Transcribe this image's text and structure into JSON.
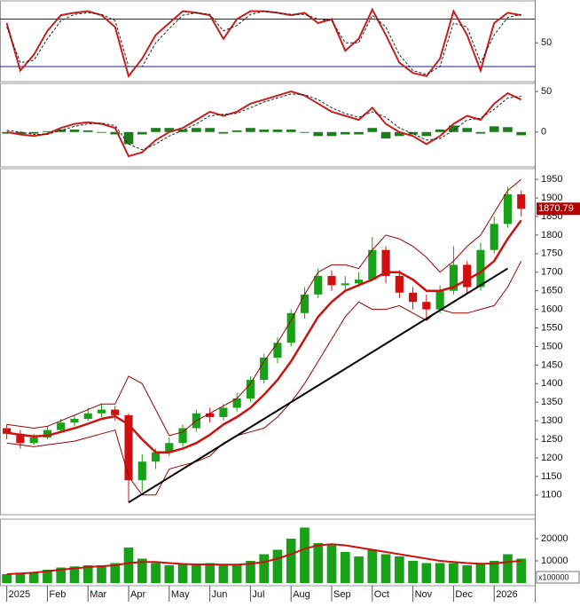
{
  "chart_data": [
    {
      "type": "line",
      "xlim": [
        -0.5,
        39
      ],
      "ylim": [
        1,
        103
      ],
      "yticks": [
        50
      ],
      "hlines": [
        80,
        20
      ],
      "hline_color": "#1c1c9c",
      "series": [
        {
          "color": "#c81e1e",
          "width": 2,
          "values": [
            75,
            15,
            35,
            65,
            85,
            88,
            90,
            85,
            70,
            8,
            30,
            60,
            75,
            90,
            88,
            85,
            55,
            80,
            90,
            90,
            88,
            85,
            88,
            75,
            80,
            40,
            55,
            92,
            60,
            25,
            12,
            8,
            30,
            90,
            60,
            15,
            75,
            88,
            85
          ]
        },
        {
          "color": "#222222",
          "width": 1,
          "dash": true,
          "values": [
            70,
            25,
            28,
            55,
            78,
            86,
            88,
            86,
            78,
            20,
            20,
            50,
            68,
            85,
            88,
            86,
            65,
            72,
            86,
            90,
            88,
            86,
            86,
            80,
            78,
            50,
            50,
            85,
            70,
            35,
            15,
            10,
            20,
            75,
            70,
            25,
            60,
            82,
            86
          ]
        }
      ]
    },
    {
      "type": "line",
      "xlim": [
        -0.5,
        39
      ],
      "ylim": [
        -43,
        60
      ],
      "yticks": [
        50,
        0
      ],
      "series": [
        {
          "type": "bar",
          "color": "#1e7b1e",
          "values": [
            -2,
            -3,
            -2,
            1,
            3,
            3,
            2,
            -1,
            -3,
            -15,
            -3,
            5,
            5,
            3,
            5,
            5,
            -2,
            2,
            5,
            3,
            3,
            3,
            -1,
            -5,
            -5,
            -3,
            -3,
            5,
            -8,
            -5,
            -3,
            -5,
            3,
            8,
            5,
            -2,
            7,
            6,
            -4
          ]
        },
        {
          "color": "#c81e1e",
          "width": 2,
          "values": [
            0,
            -3,
            -5,
            -2,
            5,
            10,
            12,
            10,
            5,
            -30,
            -25,
            -10,
            0,
            5,
            15,
            25,
            20,
            25,
            35,
            40,
            45,
            50,
            45,
            35,
            25,
            20,
            15,
            30,
            10,
            0,
            -5,
            -15,
            -5,
            10,
            20,
            15,
            35,
            48,
            40
          ]
        },
        {
          "color": "#222222",
          "width": 1,
          "dash": true,
          "values": [
            2,
            0,
            -3,
            -3,
            2,
            7,
            10,
            11,
            8,
            -15,
            -22,
            -15,
            -5,
            2,
            10,
            20,
            22,
            23,
            30,
            37,
            42,
            47,
            46,
            40,
            30,
            23,
            18,
            25,
            18,
            5,
            -2,
            -10,
            -8,
            2,
            15,
            17,
            28,
            42,
            44
          ]
        }
      ]
    },
    {
      "type": "candlestick",
      "xlim": [
        -0.5,
        39
      ],
      "ylim": [
        1047,
        1979
      ],
      "yticks": [
        1100,
        1150,
        1200,
        1250,
        1300,
        1350,
        1400,
        1450,
        1500,
        1550,
        1600,
        1650,
        1700,
        1750,
        1800,
        1850,
        1900,
        1950
      ],
      "up_color": "#18a018",
      "down_color": "#d01010",
      "open": [
        1280,
        1265,
        1240,
        1255,
        1275,
        1295,
        1305,
        1320,
        1330,
        1315,
        1140,
        1190,
        1215,
        1240,
        1280,
        1320,
        1310,
        1335,
        1360,
        1410,
        1470,
        1510,
        1590,
        1640,
        1690,
        1665,
        1670,
        1680,
        1760,
        1690,
        1645,
        1620,
        1600,
        1650,
        1720,
        1660,
        1760,
        1830,
        1910
      ],
      "high": [
        1290,
        1275,
        1265,
        1285,
        1305,
        1315,
        1335,
        1345,
        1340,
        1320,
        1210,
        1225,
        1255,
        1290,
        1330,
        1335,
        1345,
        1375,
        1420,
        1480,
        1525,
        1600,
        1660,
        1710,
        1705,
        1690,
        1700,
        1795,
        1770,
        1705,
        1660,
        1640,
        1665,
        1770,
        1730,
        1780,
        1850,
        1930,
        1920
      ],
      "low": [
        1250,
        1225,
        1235,
        1250,
        1270,
        1285,
        1300,
        1310,
        1300,
        1080,
        1110,
        1170,
        1205,
        1230,
        1270,
        1295,
        1300,
        1325,
        1350,
        1400,
        1455,
        1500,
        1575,
        1630,
        1650,
        1645,
        1660,
        1675,
        1670,
        1630,
        1600,
        1575,
        1590,
        1640,
        1640,
        1650,
        1750,
        1820,
        1850
      ],
      "close": [
        1265,
        1240,
        1255,
        1275,
        1295,
        1305,
        1320,
        1330,
        1315,
        1140,
        1190,
        1215,
        1240,
        1280,
        1320,
        1310,
        1335,
        1360,
        1410,
        1470,
        1510,
        1590,
        1640,
        1690,
        1665,
        1670,
        1680,
        1760,
        1690,
        1645,
        1620,
        1600,
        1650,
        1720,
        1660,
        1760,
        1830,
        1910,
        1870.79
      ],
      "last_label": "1870.79",
      "last_color": "#b00000",
      "series": [
        {
          "color": "#a00000",
          "width": 1,
          "values": [
            1290,
            1285,
            1280,
            1285,
            1300,
            1315,
            1330,
            1345,
            1345,
            1420,
            1400,
            1330,
            1260,
            1270,
            1300,
            1320,
            1340,
            1360,
            1400,
            1460,
            1510,
            1570,
            1640,
            1700,
            1720,
            1720,
            1710,
            1760,
            1800,
            1790,
            1770,
            1740,
            1700,
            1730,
            1770,
            1800,
            1860,
            1920,
            1950
          ]
        },
        {
          "color": "#a00000",
          "width": 1,
          "values": [
            1240,
            1235,
            1230,
            1235,
            1240,
            1245,
            1255,
            1265,
            1275,
            1150,
            1100,
            1100,
            1170,
            1180,
            1190,
            1205,
            1240,
            1260,
            1270,
            1280,
            1310,
            1350,
            1400,
            1460,
            1520,
            1580,
            1620,
            1600,
            1600,
            1610,
            1590,
            1570,
            1600,
            1590,
            1590,
            1600,
            1610,
            1660,
            1730
          ]
        },
        {
          "color": "#cc1111",
          "width": 2.5,
          "values": [
            1268,
            1262,
            1258,
            1260,
            1270,
            1280,
            1292,
            1305,
            1312,
            1290,
            1250,
            1215,
            1215,
            1225,
            1240,
            1262,
            1290,
            1310,
            1335,
            1370,
            1410,
            1460,
            1520,
            1580,
            1620,
            1650,
            1665,
            1680,
            1700,
            1700,
            1680,
            1650,
            1650,
            1660,
            1680,
            1700,
            1730,
            1790,
            1840
          ]
        }
      ],
      "trendline": {
        "color": "#000000",
        "x": [
          9,
          37
        ],
        "y": [
          1080,
          1710
        ]
      }
    },
    {
      "type": "bar",
      "xlim": [
        -0.5,
        39
      ],
      "ylim": [
        -1200,
        28800
      ],
      "yticks": [
        10000,
        20000
      ],
      "unit_label": "x100000",
      "xticks": [
        {
          "value": 0,
          "label": "2025"
        },
        {
          "value": 3,
          "label": "Feb"
        },
        {
          "value": 6,
          "label": "Mar"
        },
        {
          "value": 9,
          "label": "Apr"
        },
        {
          "value": 12,
          "label": "May"
        },
        {
          "value": 15,
          "label": "Jun"
        },
        {
          "value": 18,
          "label": "Jul"
        },
        {
          "value": 21,
          "label": "Aug"
        },
        {
          "value": 24,
          "label": "Sep"
        },
        {
          "value": 27,
          "label": "Oct"
        },
        {
          "value": 30,
          "label": "Nov"
        },
        {
          "value": 33,
          "label": "Dec"
        },
        {
          "value": 36,
          "label": "2026"
        }
      ],
      "series": [
        {
          "type": "bar",
          "color": "#18a018",
          "values": [
            4000,
            4500,
            5000,
            6000,
            7000,
            7500,
            8000,
            8000,
            9000,
            16000,
            11000,
            9000,
            8000,
            8500,
            8000,
            9000,
            8000,
            8500,
            10000,
            13000,
            15000,
            20000,
            25000,
            18000,
            17000,
            14000,
            12000,
            15000,
            13000,
            12000,
            10000,
            9000,
            9000,
            9000,
            8000,
            9000,
            10000,
            13000,
            11000
          ]
        },
        {
          "color": "#cc1111",
          "width": 2,
          "values": [
            4000,
            4300,
            4700,
            5300,
            6000,
            6600,
            7200,
            7600,
            8000,
            9000,
            9500,
            9500,
            9000,
            8600,
            8400,
            8400,
            8300,
            8300,
            8700,
            9500,
            11000,
            13000,
            15500,
            17000,
            17500,
            17000,
            16000,
            15000,
            14000,
            13000,
            12000,
            11000,
            10000,
            9500,
            9000,
            8700,
            8800,
            9500,
            10000
          ]
        }
      ]
    }
  ]
}
